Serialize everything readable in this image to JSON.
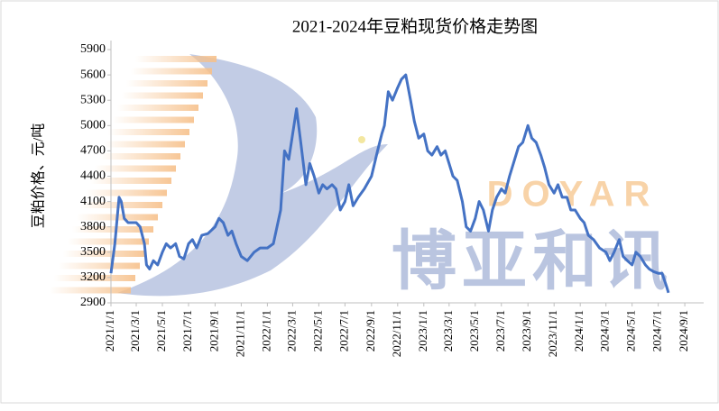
{
  "chart_data": {
    "type": "line",
    "title": "2021-2024年豆粕现货价格走势图",
    "y_label": "豆粕价格、元/吨",
    "annotations": [
      "DOYAR",
      "博亚和讯"
    ],
    "x": [
      "2021/1/1",
      "2021/1/10",
      "2021/1/20",
      "2021/1/25",
      "2021/2/1",
      "2021/2/10",
      "2021/2/20",
      "2021/3/1",
      "2021/3/10",
      "2021/3/20",
      "2021/3/25",
      "2021/4/1",
      "2021/4/10",
      "2021/4/20",
      "2021/5/1",
      "2021/5/10",
      "2021/5/20",
      "2021/6/1",
      "2021/6/10",
      "2021/6/20",
      "2021/7/1",
      "2021/7/10",
      "2021/7/20",
      "2021/8/1",
      "2021/8/15",
      "2021/9/1",
      "2021/9/10",
      "2021/9/20",
      "2021/10/1",
      "2021/10/10",
      "2021/10/20",
      "2021/11/1",
      "2021/11/15",
      "2021/12/1",
      "2021/12/15",
      "2022/1/1",
      "2022/1/15",
      "2022/2/1",
      "2022/2/10",
      "2022/2/20",
      "2022/3/1",
      "2022/3/10",
      "2022/3/20",
      "2022/4/1",
      "2022/4/10",
      "2022/4/20",
      "2022/5/1",
      "2022/5/10",
      "2022/5/20",
      "2022/6/1",
      "2022/6/10",
      "2022/6/20",
      "2022/7/1",
      "2022/7/10",
      "2022/7/20",
      "2022/8/1",
      "2022/8/15",
      "2022/9/1",
      "2022/9/15",
      "2022/9/25",
      "2022/10/1",
      "2022/10/10",
      "2022/10/20",
      "2022/11/1",
      "2022/11/10",
      "2022/11/20",
      "2022/12/1",
      "2022/12/10",
      "2022/12/20",
      "2023/1/1",
      "2023/1/10",
      "2023/1/20",
      "2023/2/1",
      "2023/2/10",
      "2023/2/20",
      "2023/3/1",
      "2023/3/10",
      "2023/3/20",
      "2023/4/1",
      "2023/4/10",
      "2023/4/20",
      "2023/5/1",
      "2023/5/10",
      "2023/5/20",
      "2023/6/1",
      "2023/6/10",
      "2023/6/20",
      "2023/7/1",
      "2023/7/10",
      "2023/7/20",
      "2023/8/1",
      "2023/8/10",
      "2023/8/20",
      "2023/9/1",
      "2023/9/10",
      "2023/9/20",
      "2023/10/1",
      "2023/10/10",
      "2023/10/20",
      "2023/11/1",
      "2023/11/10",
      "2023/11/20",
      "2023/12/1",
      "2023/12/10",
      "2023/12/20",
      "2024/1/1",
      "2024/1/10",
      "2024/1/20",
      "2024/2/1",
      "2024/2/15",
      "2024/3/1",
      "2024/3/10",
      "2024/3/20",
      "2024/4/1",
      "2024/4/10",
      "2024/4/20",
      "2024/5/1",
      "2024/5/10",
      "2024/5/20",
      "2024/6/1",
      "2024/6/10",
      "2024/6/20",
      "2024/7/1",
      "2024/7/10",
      "2024/7/20",
      "2024/7/25"
    ],
    "values": [
      3250,
      3600,
      4150,
      4100,
      3900,
      3850,
      3850,
      3850,
      3800,
      3600,
      3350,
      3300,
      3400,
      3350,
      3500,
      3600,
      3550,
      3600,
      3450,
      3420,
      3600,
      3650,
      3550,
      3700,
      3720,
      3800,
      3900,
      3850,
      3700,
      3750,
      3600,
      3450,
      3400,
      3500,
      3550,
      3550,
      3600,
      4000,
      4700,
      4600,
      4900,
      5200,
      4800,
      4300,
      4550,
      4400,
      4200,
      4300,
      4250,
      4300,
      4250,
      4000,
      4100,
      4300,
      4050,
      4150,
      4250,
      4400,
      4700,
      4900,
      5000,
      5400,
      5300,
      5450,
      5550,
      5600,
      5300,
      5050,
      4850,
      4900,
      4700,
      4650,
      4750,
      4650,
      4700,
      4550,
      4400,
      4350,
      4100,
      3800,
      3750,
      3900,
      4100,
      4000,
      3750,
      4000,
      4150,
      4250,
      4200,
      4400,
      4600,
      4750,
      4800,
      5000,
      4850,
      4800,
      4650,
      4500,
      4300,
      4200,
      4300,
      4150,
      4150,
      4000,
      4000,
      3900,
      3850,
      3700,
      3650,
      3550,
      3500,
      3400,
      3500,
      3650,
      3450,
      3400,
      3350,
      3500,
      3450,
      3350,
      3300,
      3270,
      3250,
      3250,
      3100,
      3020
    ],
    "color": "#4472c4",
    "xlim": [
      "2021/1/1",
      "2024/10/15"
    ],
    "xticks": [
      "2021/1/1",
      "2021/3/1",
      "2021/5/1",
      "2021/7/1",
      "2021/9/1",
      "2021/11/1",
      "2022/1/1",
      "2022/3/1",
      "2022/5/1",
      "2022/7/1",
      "2022/9/1",
      "2022/11/1",
      "2023/1/1",
      "2023/3/1",
      "2023/5/1",
      "2023/7/1",
      "2023/9/1",
      "2023/11/1",
      "2024/1/1",
      "2024/3/1",
      "2024/5/1",
      "2024/7/1",
      "2024/9/1"
    ],
    "ylim": [
      2900,
      5900
    ],
    "yticks": [
      2900,
      3200,
      3500,
      3800,
      4100,
      4400,
      4700,
      5000,
      5300,
      5600,
      5900
    ],
    "grid": false
  }
}
